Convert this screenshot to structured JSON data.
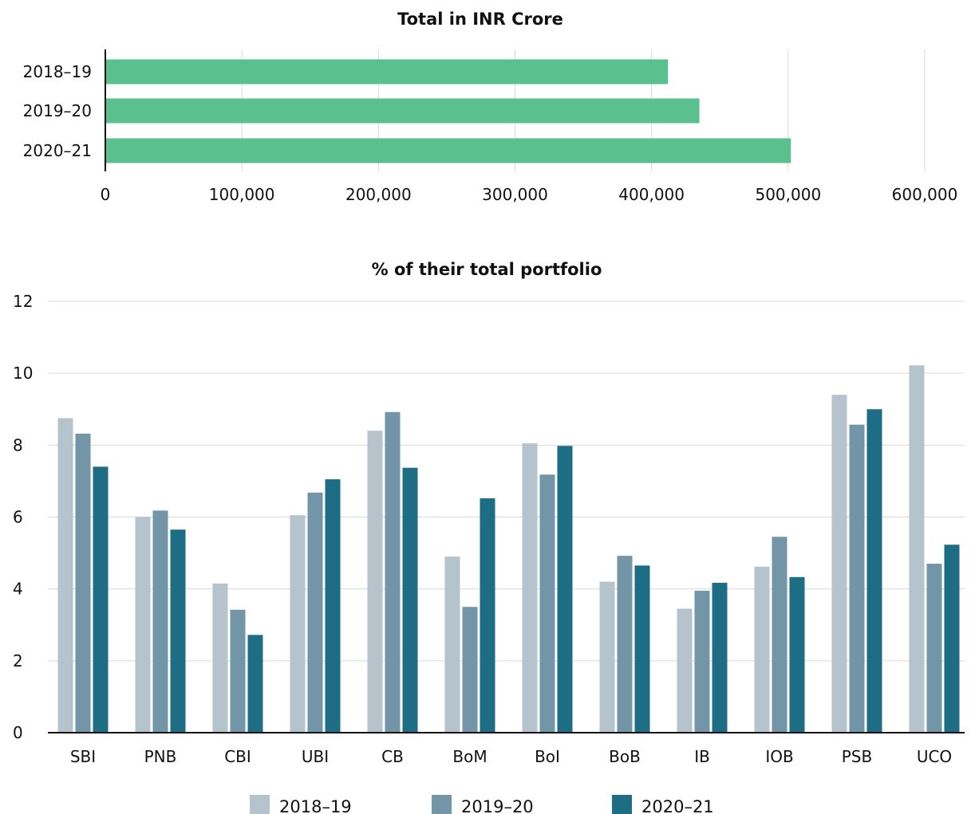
{
  "chart_data": [
    {
      "type": "bar",
      "orientation": "horizontal",
      "title": "Total in INR Crore",
      "categories": [
        "2018–19",
        "2019–20",
        "2020–21"
      ],
      "values": [
        412000,
        435000,
        502000
      ],
      "xlim": [
        0,
        600000
      ],
      "xticks": [
        "0",
        "100,000",
        "200,000",
        "300,000",
        "400,000",
        "500,000",
        "600,000"
      ],
      "grid": true,
      "color": "#5ac18e"
    },
    {
      "type": "bar",
      "orientation": "vertical",
      "title": "% of their total portfolio",
      "categories": [
        "SBI",
        "PNB",
        "CBI",
        "UBI",
        "CB",
        "BoM",
        "BoI",
        "BoB",
        "IB",
        "IOB",
        "PSB",
        "UCO"
      ],
      "series": [
        {
          "name": "2018–19",
          "color": "#b5c3cc",
          "values": [
            8.75,
            6.0,
            4.15,
            6.05,
            8.4,
            4.9,
            8.05,
            4.2,
            3.45,
            4.62,
            9.4,
            10.22
          ]
        },
        {
          "name": "2019–20",
          "color": "#7295a8",
          "values": [
            8.32,
            6.18,
            3.42,
            6.68,
            8.92,
            3.5,
            7.18,
            4.92,
            3.95,
            5.45,
            8.57,
            4.7
          ]
        },
        {
          "name": "2020–21",
          "color": "#1d6e84",
          "values": [
            7.4,
            5.65,
            2.72,
            7.05,
            7.37,
            6.52,
            7.98,
            4.65,
            4.17,
            4.33,
            9.0,
            5.23
          ]
        }
      ],
      "ylim": [
        0,
        12
      ],
      "yticks": [
        "0",
        "2",
        "4",
        "6",
        "8",
        "10",
        "12"
      ],
      "grid": true,
      "legend_position": "bottom"
    }
  ]
}
